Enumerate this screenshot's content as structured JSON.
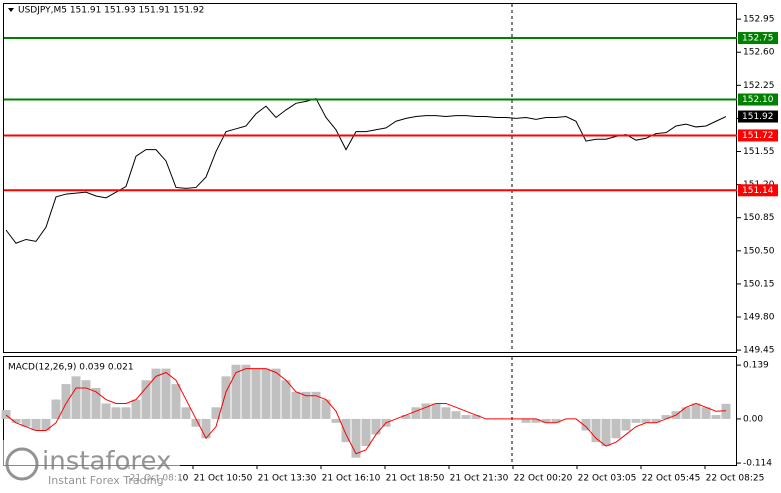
{
  "chart_data": [
    {
      "type": "line",
      "title": "USDJPY,M5  151.91 151.93 151.91 151.92",
      "series": [
        {
          "color": "#000000",
          "values": [
            150.72,
            150.58,
            150.62,
            150.6,
            150.75,
            151.07,
            151.1,
            151.11,
            151.12,
            151.08,
            151.06,
            151.12,
            151.18,
            151.5,
            151.57,
            151.57,
            151.45,
            151.17,
            151.16,
            151.17,
            151.28,
            151.55,
            151.76,
            151.79,
            151.82,
            151.95,
            152.03,
            151.91,
            151.99,
            152.06,
            152.08,
            152.11,
            151.91,
            151.78,
            151.57,
            151.76,
            151.76,
            151.78,
            151.8,
            151.87,
            151.9,
            151.92,
            151.93,
            151.93,
            151.92,
            151.93,
            151.93,
            151.92,
            151.92,
            151.91,
            151.91,
            151.9,
            151.91,
            151.89,
            151.91,
            151.91,
            151.92,
            151.87,
            151.66,
            151.68,
            151.68,
            151.71,
            151.73,
            151.67,
            151.69,
            151.74,
            151.75,
            151.82,
            151.84,
            151.81,
            151.82,
            151.87,
            151.92
          ]
        }
      ],
      "ylim": [
        149.43,
        153.11
      ],
      "yticks": [
        {
          "value": 152.95,
          "label": "152.95"
        },
        {
          "value": 152.6,
          "label": "152.60"
        },
        {
          "value": 152.25,
          "label": "152.25"
        },
        {
          "value": 151.9,
          "label": "151.90"
        },
        {
          "value": 151.55,
          "label": "151.55"
        },
        {
          "value": 151.2,
          "label": "151.20"
        },
        {
          "value": 150.85,
          "label": "150.85"
        },
        {
          "value": 150.5,
          "label": "150.50"
        },
        {
          "value": 150.15,
          "label": "150.15"
        },
        {
          "value": 149.8,
          "label": "149.80"
        },
        {
          "value": 149.45,
          "label": "149.45"
        }
      ],
      "levels": [
        {
          "value": 152.75,
          "label": "152.75",
          "color": "#008000"
        },
        {
          "value": 152.1,
          "label": "152.10",
          "color": "#008000"
        },
        {
          "value": 151.72,
          "label": "151.72",
          "color": "#ff0000"
        },
        {
          "value": 151.14,
          "label": "151.14",
          "color": "#ff0000"
        }
      ],
      "current_price": {
        "value": 151.92,
        "label": "151.92"
      }
    },
    {
      "type": "macd",
      "title": "MACD(12,26,9) 0.039 0.021",
      "series": [
        {
          "name": "MACD",
          "color": "#c0c0c0",
          "values": [
            0.023,
            -0.01,
            -0.02,
            -0.03,
            -0.03,
            0.05,
            0.09,
            0.11,
            0.1,
            0.08,
            0.04,
            0.03,
            0.03,
            0.05,
            0.1,
            0.13,
            0.13,
            0.09,
            0.03,
            -0.02,
            -0.05,
            0.03,
            0.11,
            0.14,
            0.14,
            0.13,
            0.13,
            0.13,
            0.1,
            0.07,
            0.07,
            0.07,
            0.05,
            -0.01,
            -0.06,
            -0.1,
            -0.07,
            -0.04,
            -0.02,
            0.0,
            0.01,
            0.03,
            0.04,
            0.04,
            0.03,
            0.02,
            0.01,
            0.01,
            0.0,
            0.0,
            0.0,
            0.0,
            -0.01,
            -0.01,
            -0.01,
            -0.01,
            0.0,
            0.0,
            -0.03,
            -0.06,
            -0.07,
            -0.05,
            -0.03,
            -0.01,
            -0.01,
            -0.01,
            0.01,
            0.02,
            0.03,
            0.04,
            0.03,
            0.01,
            0.039
          ]
        },
        {
          "name": "Signal",
          "color": "#ff0000",
          "values": [
            0.01,
            -0.01,
            -0.02,
            -0.03,
            -0.03,
            -0.01,
            0.04,
            0.08,
            0.08,
            0.07,
            0.05,
            0.04,
            0.04,
            0.05,
            0.08,
            0.11,
            0.12,
            0.1,
            0.05,
            0.0,
            -0.05,
            -0.02,
            0.07,
            0.12,
            0.13,
            0.13,
            0.13,
            0.12,
            0.1,
            0.07,
            0.06,
            0.06,
            0.05,
            0.02,
            -0.04,
            -0.09,
            -0.08,
            -0.04,
            -0.01,
            0.0,
            0.01,
            0.02,
            0.03,
            0.04,
            0.04,
            0.03,
            0.02,
            0.01,
            0.0,
            0.0,
            0.0,
            0.0,
            0.0,
            0.0,
            -0.01,
            -0.01,
            0.0,
            0.0,
            -0.02,
            -0.05,
            -0.07,
            -0.06,
            -0.04,
            -0.02,
            -0.01,
            -0.01,
            0.0,
            0.01,
            0.03,
            0.04,
            0.03,
            0.02,
            0.021
          ]
        }
      ],
      "ylim": [
        -0.119,
        0.16
      ],
      "yticks": [
        0.139,
        {
          "value": 0,
          "label": "0.00"
        },
        -0.114
      ],
      "x_labels": [
        "21 Oct 08:10",
        "21 Oct 10:50",
        "21 Oct 13:30",
        "21 Oct 16:10",
        "21 Oct 18:50",
        "21 Oct 21:30",
        "22 Oct 00:20",
        "22 Oct 03:05",
        "22 Oct 05:45",
        "22 Oct 08:25"
      ]
    }
  ],
  "watermark": {
    "brand": "instaforex",
    "tagline": "Instant Forex Trading"
  }
}
